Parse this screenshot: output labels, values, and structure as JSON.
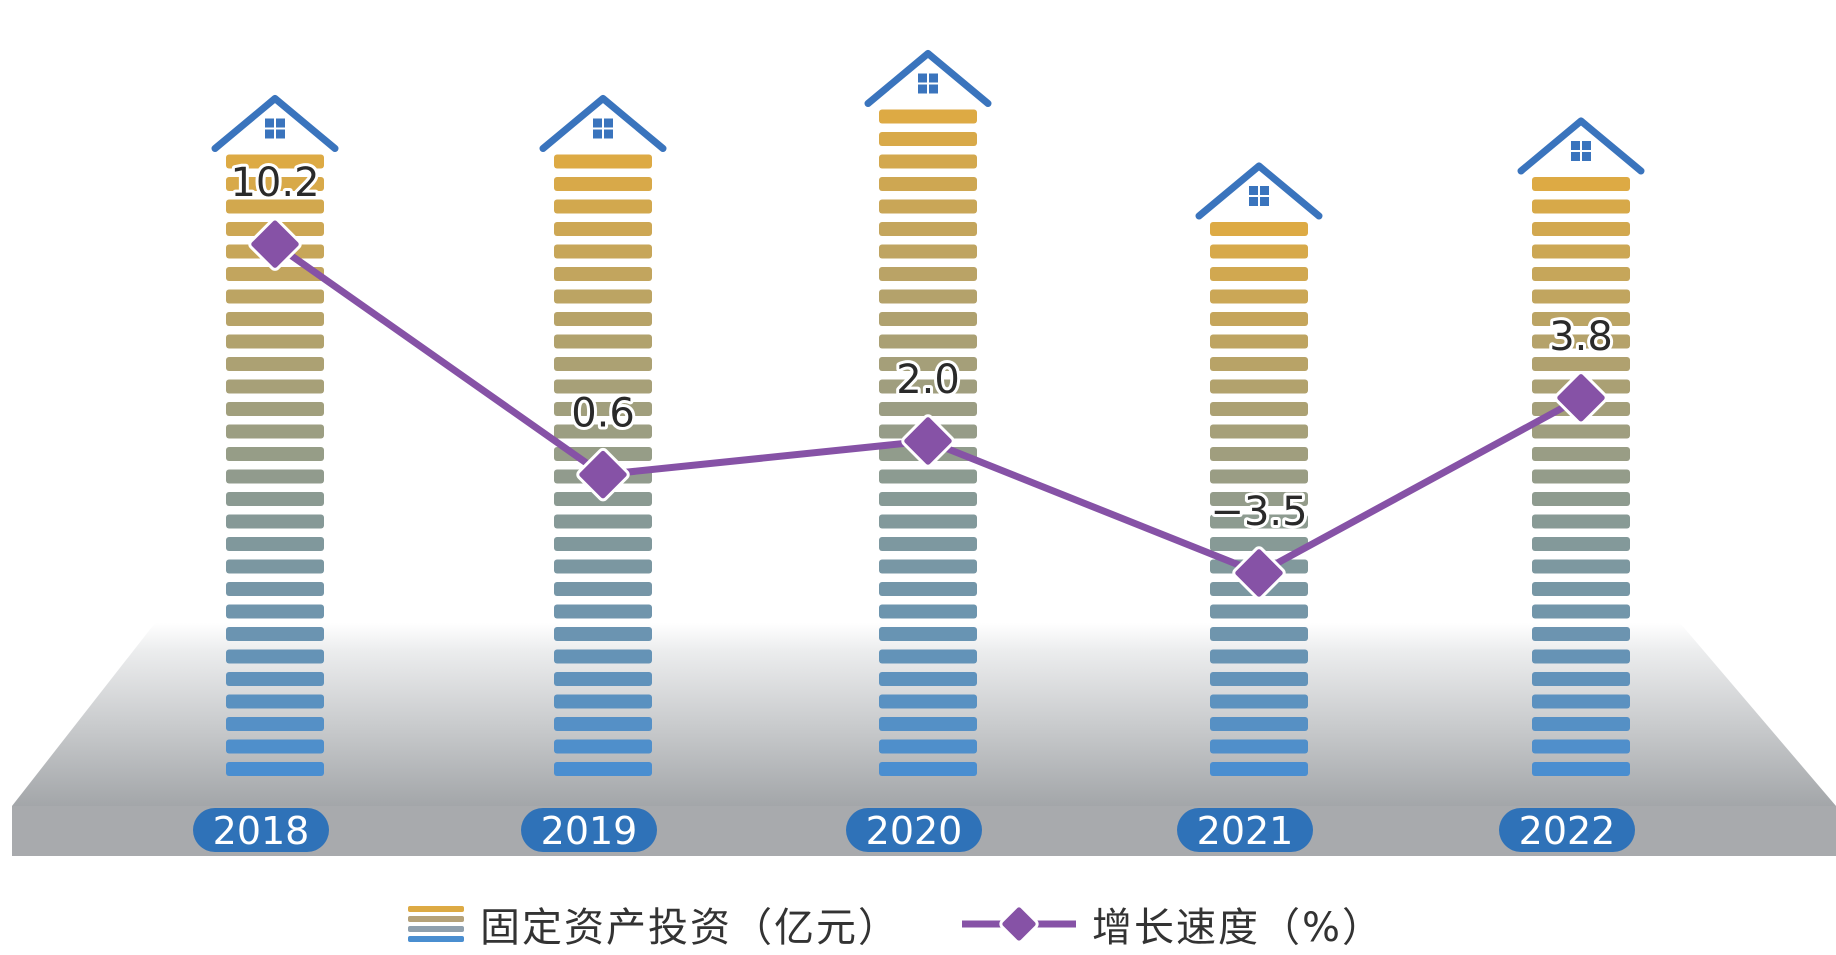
{
  "chart_data": {
    "type": "bar",
    "categories": [
      "2018",
      "2019",
      "2020",
      "2021",
      "2022"
    ],
    "series": [
      {
        "name": "固定资产投资（亿元）",
        "kind": "bar",
        "values": [
          100,
          100,
          105.0,
          90.0,
          95.0
        ]
      },
      {
        "name": "增长速度（%）",
        "kind": "line",
        "values": [
          10.2,
          0.6,
          2.0,
          -3.5,
          3.8
        ],
        "labels": [
          "10.2",
          "0.6",
          "2.0",
          "−3.5",
          "3.8"
        ]
      }
    ],
    "colors": {
      "bar_top": "#DDAA44",
      "bar_bottom": "#4A8ED0",
      "roof": "#3A74BD",
      "line": "#8652A6",
      "marker": "#8652A6",
      "year_pill": "#2F72B8",
      "floor_top": "#F2F3F4",
      "floor_bottom": "#8E9194",
      "floor_edge": "#A8AAAD"
    },
    "legend": {
      "bar_label": "固定资产投资（亿元）",
      "line_label": "增长速度（%）"
    }
  }
}
